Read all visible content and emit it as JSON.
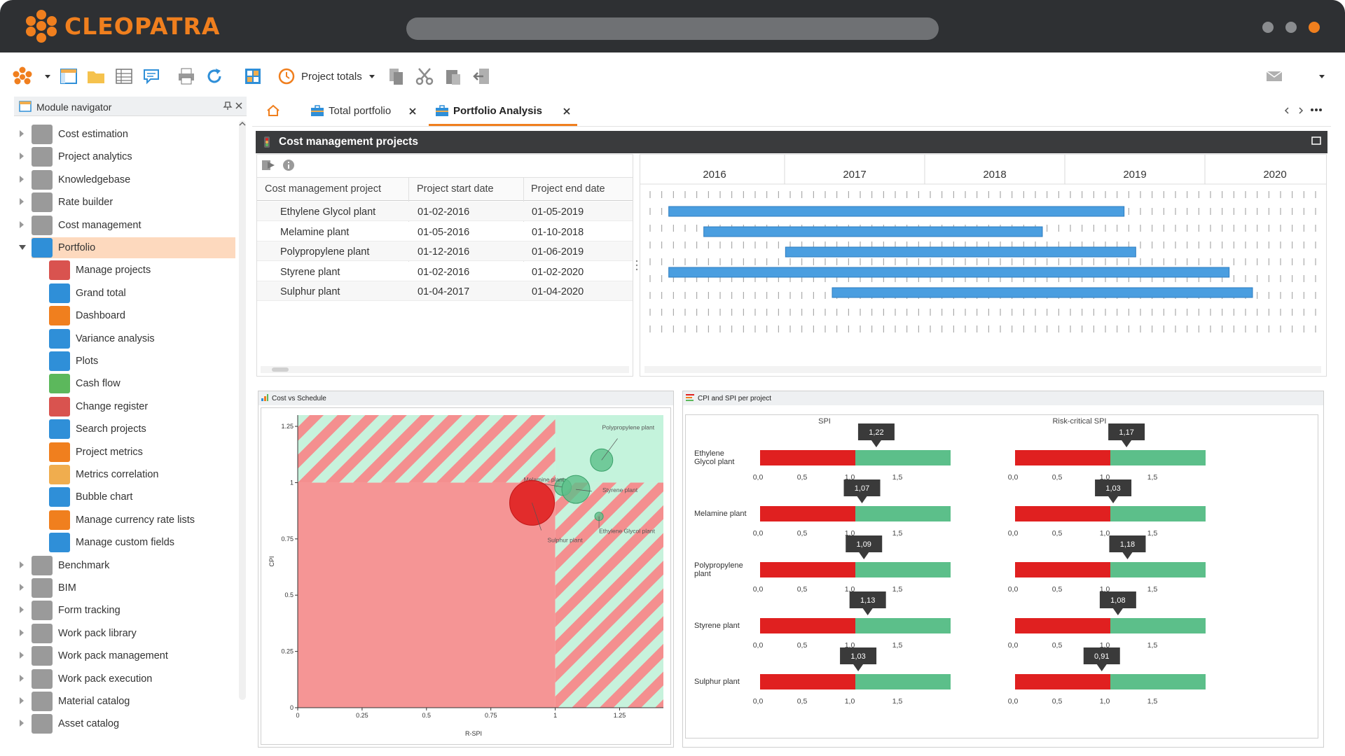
{
  "app": {
    "brand": "CLEOPATRA"
  },
  "toolbar": {
    "project_totals": "Project totals"
  },
  "navigator": {
    "title": "Module navigator",
    "items": [
      {
        "label": "Cost estimation",
        "icon": "triangle-icon",
        "color": "#9a9a9a",
        "level": 0
      },
      {
        "label": "Project analytics",
        "icon": "analytics-icon",
        "color": "#9a9a9a",
        "level": 0
      },
      {
        "label": "Knowledgebase",
        "icon": "book-icon",
        "color": "#9a9a9a",
        "level": 0
      },
      {
        "label": "Rate builder",
        "icon": "cloud-icon",
        "color": "#9a9a9a",
        "level": 0
      },
      {
        "label": "Cost management",
        "icon": "cost-icon",
        "color": "#9a9a9a",
        "level": 0
      },
      {
        "label": "Portfolio",
        "icon": "briefcase-icon",
        "color": "#2f8fd8",
        "level": 0,
        "selected": true,
        "expanded": true
      },
      {
        "label": "Manage projects",
        "icon": "manage-projects-icon",
        "color": "#d9534f",
        "level": 1
      },
      {
        "label": "Grand total",
        "icon": "grand-total-icon",
        "color": "#2f8fd8",
        "level": 1
      },
      {
        "label": "Dashboard",
        "icon": "dashboard-icon",
        "color": "#f07f1e",
        "level": 1
      },
      {
        "label": "Variance analysis",
        "icon": "variance-icon",
        "color": "#2f8fd8",
        "level": 1
      },
      {
        "label": "Plots",
        "icon": "plots-icon",
        "color": "#2f8fd8",
        "level": 1
      },
      {
        "label": "Cash flow",
        "icon": "cashflow-icon",
        "color": "#5cb85c",
        "level": 1
      },
      {
        "label": "Change register",
        "icon": "change-icon",
        "color": "#d9534f",
        "level": 1
      },
      {
        "label": "Search projects",
        "icon": "search-icon",
        "color": "#2f8fd8",
        "level": 1
      },
      {
        "label": "Project metrics",
        "icon": "metrics-icon",
        "color": "#f07f1e",
        "level": 1
      },
      {
        "label": "Metrics correlation",
        "icon": "correlation-icon",
        "color": "#f0ad4e",
        "level": 1
      },
      {
        "label": "Bubble chart",
        "icon": "bubble-icon",
        "color": "#2f8fd8",
        "level": 1
      },
      {
        "label": "Manage currency rate lists",
        "icon": "currency-icon",
        "color": "#f07f1e",
        "level": 1
      },
      {
        "label": "Manage custom fields",
        "icon": "fields-icon",
        "color": "#2f8fd8",
        "level": 1
      },
      {
        "label": "Benchmark",
        "icon": "benchmark-icon",
        "color": "#9a9a9a",
        "level": 0
      },
      {
        "label": "BIM",
        "icon": "bim-icon",
        "color": "#9a9a9a",
        "level": 0
      },
      {
        "label": "Form tracking",
        "icon": "form-icon",
        "color": "#9a9a9a",
        "level": 0
      },
      {
        "label": "Work pack library",
        "icon": "workpack-library-icon",
        "color": "#9a9a9a",
        "level": 0
      },
      {
        "label": "Work pack management",
        "icon": "workpack-management-icon",
        "color": "#9a9a9a",
        "level": 0
      },
      {
        "label": "Work pack execution",
        "icon": "workpack-execution-icon",
        "color": "#9a9a9a",
        "level": 0
      },
      {
        "label": "Material catalog",
        "icon": "material-icon",
        "color": "#9a9a9a",
        "level": 0
      },
      {
        "label": "Asset catalog",
        "icon": "asset-icon",
        "color": "#9a9a9a",
        "level": 0
      }
    ]
  },
  "tabs": [
    {
      "label": "Total portfolio",
      "active": false
    },
    {
      "label": "Portfolio Analysis",
      "active": true
    }
  ],
  "panel": {
    "title": "Cost management projects"
  },
  "grid": {
    "columns": [
      "Cost management project",
      "Project start date",
      "Project end date"
    ],
    "rows": [
      [
        "Ethylene Glycol plant",
        "01-02-2016",
        "01-05-2019"
      ],
      [
        "Melamine plant",
        "01-05-2016",
        "01-10-2018"
      ],
      [
        "Polypropylene plant",
        "01-12-2016",
        "01-06-2019"
      ],
      [
        "Styrene plant",
        "01-02-2016",
        "01-02-2020"
      ],
      [
        "Sulphur plant",
        "01-04-2017",
        "01-04-2020"
      ]
    ]
  },
  "gantt": {
    "years": [
      "2016",
      "2017",
      "2018",
      "2019",
      "2020"
    ]
  },
  "cost_schedule": {
    "title": "Cost vs Schedule"
  },
  "cpi_spi": {
    "title": "CPI and SPI per project"
  },
  "chart_data": [
    {
      "type": "scatter",
      "title": "Cost vs Schedule",
      "xlabel": "R-SPI",
      "ylabel": "CPI",
      "xlim": [
        0,
        1.42
      ],
      "ylim": [
        0,
        1.3
      ],
      "xticks": [
        "0",
        "0.25",
        "0.5",
        "0.75",
        "1",
        "1.25"
      ],
      "yticks": [
        "0",
        "0.25",
        "0.5",
        "0.75",
        "1",
        "1.25"
      ],
      "series": [
        {
          "label": "Polypropylene plant",
          "x": 1.18,
          "y": 1.1,
          "size": 16,
          "color": "#5cbf8a"
        },
        {
          "label": "Melamine plant",
          "x": 1.03,
          "y": 0.98,
          "size": 12,
          "color": "#5cbf8a"
        },
        {
          "label": "Styrene plant",
          "x": 1.08,
          "y": 0.97,
          "size": 20,
          "color": "#5cbf8a"
        },
        {
          "label": "Ethylene Glycol plant",
          "x": 1.17,
          "y": 0.85,
          "size": 6,
          "color": "#5cbf8a"
        },
        {
          "label": "Sulphur plant",
          "x": 0.91,
          "y": 0.91,
          "size": 32,
          "color": "#e02020"
        }
      ]
    },
    {
      "type": "bar",
      "title": "CPI and SPI per project",
      "columns": [
        "SPI",
        "Risk-critical SPI"
      ],
      "axis_ticks": [
        "0,0",
        "0,5",
        "1,0",
        "1,5"
      ],
      "categories": [
        "Ethylene Glycol plant",
        "Melamine plant",
        "Polypropylene plant",
        "Styrene plant",
        "Sulphur plant"
      ],
      "spi_labels": [
        "1,22",
        "1,07",
        "1,09",
        "1,13",
        "1,03"
      ],
      "spi": [
        1.22,
        1.07,
        1.09,
        1.13,
        1.03
      ],
      "risk_spi_labels": [
        "1,17",
        "1,03",
        "1,18",
        "1,08",
        "0,91"
      ],
      "risk_spi": [
        1.17,
        1.03,
        1.18,
        1.08,
        0.91
      ]
    }
  ],
  "gantt_data": {
    "type": "gantt",
    "tasks": [
      {
        "name": "Ethylene Glycol plant",
        "start": "2016-02-01",
        "end": "2019-05-01"
      },
      {
        "name": "Melamine plant",
        "start": "2016-05-01",
        "end": "2018-10-01"
      },
      {
        "name": "Polypropylene plant",
        "start": "2016-12-01",
        "end": "2019-06-01"
      },
      {
        "name": "Styrene plant",
        "start": "2016-02-01",
        "end": "2020-02-01"
      },
      {
        "name": "Sulphur plant",
        "start": "2017-04-01",
        "end": "2020-04-01"
      }
    ]
  },
  "colors": {
    "accent": "#f07f1e",
    "bar": "#4a9ee0",
    "red": "#e02020",
    "green": "#5cbf8a",
    "dark": "#2e3033"
  }
}
